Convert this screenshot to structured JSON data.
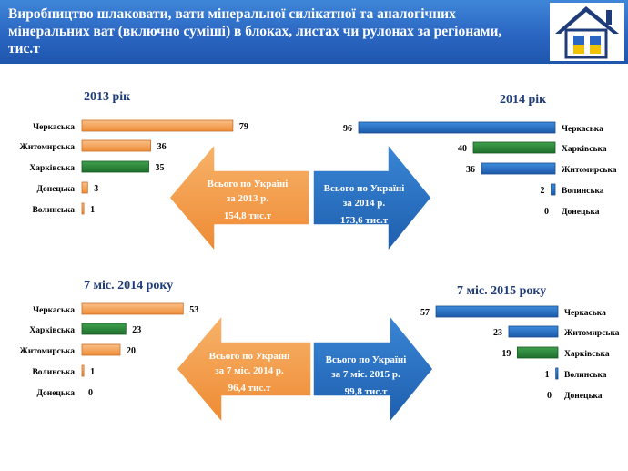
{
  "header": {
    "title": "Виробництво шлаковати, вати  мінеральної силікатної та аналогічних мінеральних ват (включно суміші) в блоках, листах чи рулонах за регіонами, тис.т"
  },
  "colors": {
    "orange": "#f29b4b",
    "green": "#2f8a3c",
    "blue": "#2c6fc2",
    "title": "#1f3c7a",
    "header": "#2a66c2"
  },
  "summaries": {
    "s2013": {
      "line1": "Всього по Україні",
      "line2": "за 2013 р.",
      "line3": "154,8 тис.т"
    },
    "s2014": {
      "line1": "Всього по Україні",
      "line2": "за 2014 р.",
      "line3": "173,6 тис.т"
    },
    "s7m2014": {
      "line1": "Всього по Україні",
      "line2": "за 7 міс. 2014 р.",
      "line3": "96,4 тис.т"
    },
    "s7m2015": {
      "line1": "Всього по Україні",
      "line2": "за 7 міс. 2015 р.",
      "line3": "99,8 тис.т"
    }
  },
  "chart_data": [
    {
      "type": "bar",
      "orientation": "horizontal",
      "title": "2013 рік",
      "categories": [
        "Черкаська",
        "Житомирська",
        "Харківська",
        "Донецька",
        "Волинська"
      ],
      "values": [
        79,
        36,
        35,
        3,
        1
      ],
      "colors": [
        "orange",
        "orange",
        "green",
        "orange",
        "orange"
      ]
    },
    {
      "type": "bar",
      "orientation": "horizontal",
      "direction": "right-to-left",
      "title": "2014 рік",
      "categories": [
        "Черкаська",
        "Харківська",
        "Житомирська",
        "Волинська",
        "Донецька"
      ],
      "values": [
        96,
        40,
        36,
        2,
        0
      ],
      "colors": [
        "blue",
        "green",
        "blue",
        "blue",
        "blue"
      ]
    },
    {
      "type": "bar",
      "orientation": "horizontal",
      "title": "7 міс. 2014 року",
      "categories": [
        "Черкаська",
        "Харківська",
        "Житомирська",
        "Волинська",
        "Донецька"
      ],
      "values": [
        53,
        23,
        20,
        1,
        0
      ],
      "colors": [
        "orange",
        "green",
        "orange",
        "orange",
        "orange"
      ]
    },
    {
      "type": "bar",
      "orientation": "horizontal",
      "direction": "right-to-left",
      "title": "7 міс. 2015 року",
      "categories": [
        "Черкаська",
        "Житомирська",
        "Харківська",
        "Волинська",
        "Донецька"
      ],
      "values": [
        57,
        23,
        19,
        1,
        0
      ],
      "colors": [
        "blue",
        "blue",
        "green",
        "blue",
        "blue"
      ]
    }
  ]
}
